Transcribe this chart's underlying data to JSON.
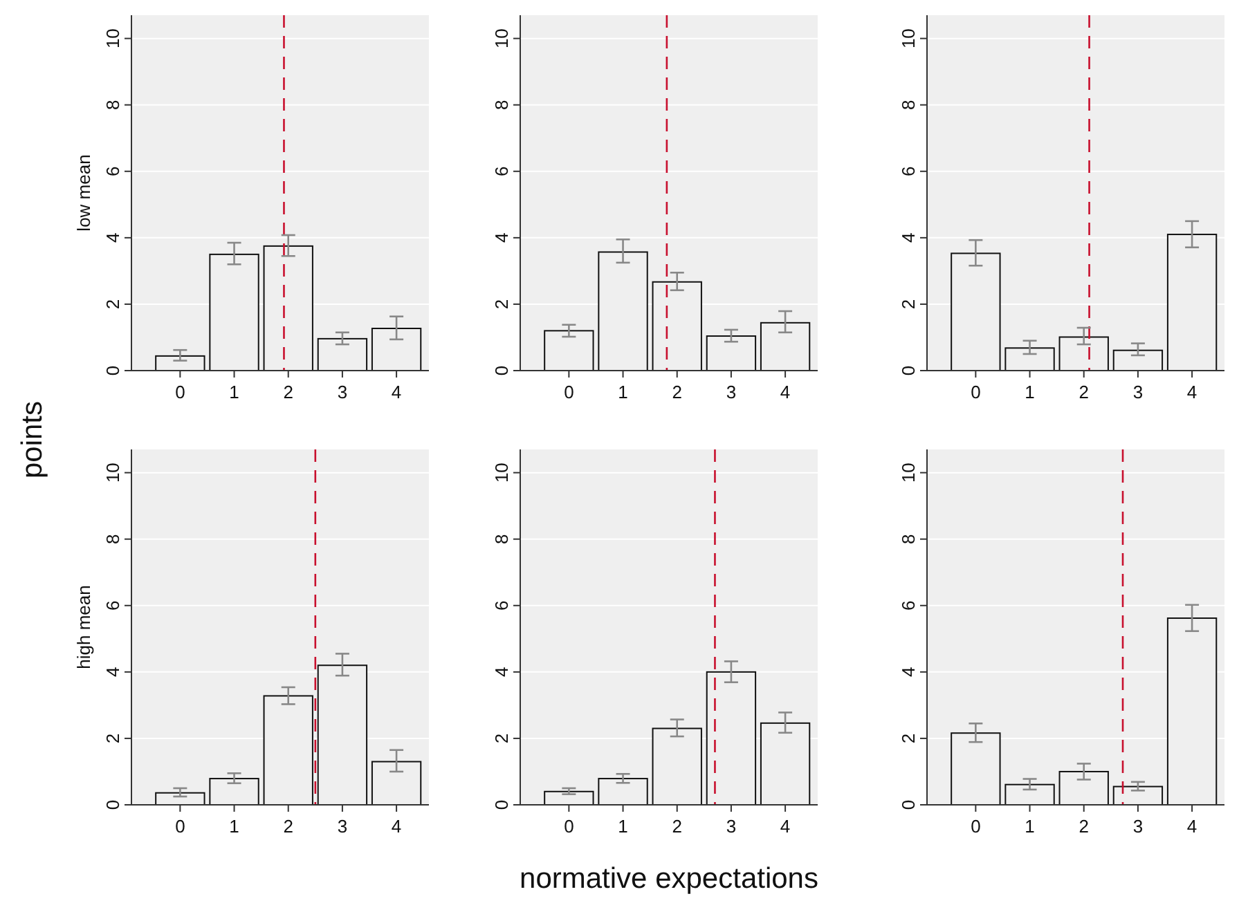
{
  "chart_data": [
    {
      "type": "bar",
      "ylabel": "low mean",
      "annotations": [
        "points"
      ],
      "x": [
        0,
        1,
        2,
        3,
        4
      ],
      "xlim": [
        -0.9,
        4.6
      ],
      "xticks": [
        0,
        1,
        2,
        3,
        4
      ],
      "values": [
        0.44,
        3.5,
        3.75,
        0.96,
        1.27
      ],
      "errors": [
        [
          0.3,
          0.62
        ],
        [
          3.2,
          3.85
        ],
        [
          3.45,
          4.08
        ],
        [
          0.79,
          1.15
        ],
        [
          0.94,
          1.63
        ]
      ],
      "color": "#efefef",
      "ylim": [
        0,
        10.7
      ],
      "yticks": [
        0,
        2,
        4,
        6,
        8,
        10
      ],
      "grid": "y",
      "ref_lines": [
        {
          "axis": "x",
          "value": 1.92,
          "color": "#c8102e",
          "line_style": "dashed"
        }
      ]
    },
    {
      "type": "bar",
      "x": [
        0,
        1,
        2,
        3,
        4
      ],
      "xlim": [
        -0.9,
        4.6
      ],
      "xticks": [
        0,
        1,
        2,
        3,
        4
      ],
      "values": [
        1.2,
        3.57,
        2.67,
        1.04,
        1.44
      ],
      "errors": [
        [
          1.02,
          1.38
        ],
        [
          3.25,
          3.95
        ],
        [
          2.42,
          2.95
        ],
        [
          0.87,
          1.23
        ],
        [
          1.15,
          1.79
        ]
      ],
      "color": "#efefef",
      "ylim": [
        0,
        10.7
      ],
      "yticks": [
        0,
        2,
        4,
        6,
        8,
        10
      ],
      "grid": "y",
      "ref_lines": [
        {
          "axis": "x",
          "value": 1.81,
          "color": "#c8102e",
          "line_style": "dashed"
        }
      ]
    },
    {
      "type": "bar",
      "x": [
        0,
        1,
        2,
        3,
        4
      ],
      "xlim": [
        -0.9,
        4.6
      ],
      "xticks": [
        0,
        1,
        2,
        3,
        4
      ],
      "values": [
        3.53,
        0.68,
        1.01,
        0.61,
        4.1
      ],
      "errors": [
        [
          3.16,
          3.93
        ],
        [
          0.5,
          0.9
        ],
        [
          0.79,
          1.29
        ],
        [
          0.46,
          0.82
        ],
        [
          3.71,
          4.5
        ]
      ],
      "color": "#efefef",
      "ylim": [
        0,
        10.7
      ],
      "yticks": [
        0,
        2,
        4,
        6,
        8,
        10
      ],
      "grid": "y",
      "ref_lines": [
        {
          "axis": "x",
          "value": 2.1,
          "color": "#c8102e",
          "line_style": "dashed"
        }
      ]
    },
    {
      "type": "bar",
      "ylabel": "high mean",
      "x": [
        0,
        1,
        2,
        3,
        4
      ],
      "xlim": [
        -0.9,
        4.6
      ],
      "xticks": [
        0,
        1,
        2,
        3,
        4
      ],
      "values": [
        0.36,
        0.79,
        3.28,
        4.2,
        1.3
      ],
      "errors": [
        [
          0.25,
          0.5
        ],
        [
          0.65,
          0.95
        ],
        [
          3.03,
          3.54
        ],
        [
          3.89,
          4.55
        ],
        [
          1.0,
          1.65
        ]
      ],
      "color": "#efefef",
      "ylim": [
        0,
        10.7
      ],
      "yticks": [
        0,
        2,
        4,
        6,
        8,
        10
      ],
      "grid": "y",
      "ref_lines": [
        {
          "axis": "x",
          "value": 2.5,
          "color": "#c8102e",
          "line_style": "dashed"
        }
      ]
    },
    {
      "type": "bar",
      "xlabel": "normative expectations",
      "x": [
        0,
        1,
        2,
        3,
        4
      ],
      "xlim": [
        -0.9,
        4.6
      ],
      "xticks": [
        0,
        1,
        2,
        3,
        4
      ],
      "values": [
        0.4,
        0.79,
        2.3,
        4.0,
        2.46
      ],
      "errors": [
        [
          0.32,
          0.5
        ],
        [
          0.66,
          0.93
        ],
        [
          2.06,
          2.57
        ],
        [
          3.69,
          4.32
        ],
        [
          2.17,
          2.78
        ]
      ],
      "color": "#efefef",
      "ylim": [
        0,
        10.7
      ],
      "yticks": [
        0,
        2,
        4,
        6,
        8,
        10
      ],
      "grid": "y",
      "ref_lines": [
        {
          "axis": "x",
          "value": 2.7,
          "color": "#c8102e",
          "line_style": "dashed"
        }
      ]
    },
    {
      "type": "bar",
      "x": [
        0,
        1,
        2,
        3,
        4
      ],
      "xlim": [
        -0.9,
        4.6
      ],
      "xticks": [
        0,
        1,
        2,
        3,
        4
      ],
      "values": [
        2.16,
        0.61,
        1.0,
        0.55,
        5.62
      ],
      "errors": [
        [
          1.89,
          2.45
        ],
        [
          0.46,
          0.78
        ],
        [
          0.76,
          1.24
        ],
        [
          0.43,
          0.69
        ],
        [
          5.23,
          6.02
        ]
      ],
      "color": "#efefef",
      "ylim": [
        0,
        10.7
      ],
      "yticks": [
        0,
        2,
        4,
        6,
        8,
        10
      ],
      "grid": "y",
      "ref_lines": [
        {
          "axis": "x",
          "value": 2.72,
          "color": "#c8102e",
          "line_style": "dashed"
        }
      ]
    }
  ]
}
